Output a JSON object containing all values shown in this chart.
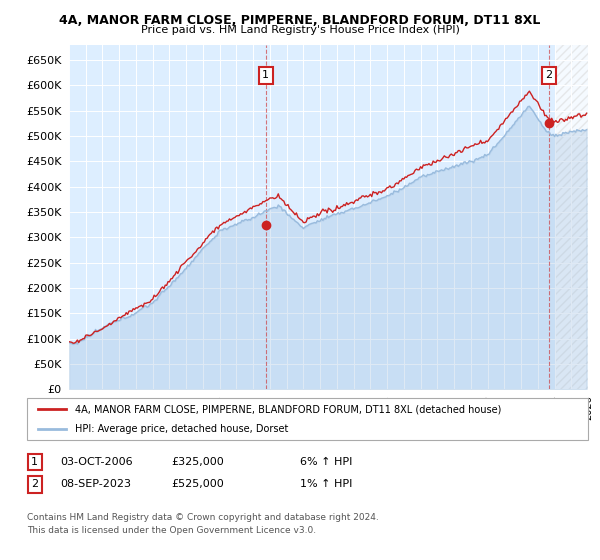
{
  "title": "4A, MANOR FARM CLOSE, PIMPERNE, BLANDFORD FORUM, DT11 8XL",
  "subtitle": "Price paid vs. HM Land Registry's House Price Index (HPI)",
  "legend_line1": "4A, MANOR FARM CLOSE, PIMPERNE, BLANDFORD FORUM, DT11 8XL (detached house)",
  "legend_line2": "HPI: Average price, detached house, Dorset",
  "sale1_date": "03-OCT-2006",
  "sale1_price": 325000,
  "sale1_hpi": "6% ↑ HPI",
  "sale2_date": "08-SEP-2023",
  "sale2_price": 525000,
  "sale2_hpi": "1% ↑ HPI",
  "footnote1": "Contains HM Land Registry data © Crown copyright and database right 2024.",
  "footnote2": "This data is licensed under the Open Government Licence v3.0.",
  "ylim": [
    0,
    680000
  ],
  "yticks": [
    0,
    50000,
    100000,
    150000,
    200000,
    250000,
    300000,
    350000,
    400000,
    450000,
    500000,
    550000,
    600000,
    650000
  ],
  "price_line_color": "#cc2222",
  "hpi_line_color": "#99bbdd",
  "hpi_fill_color": "#ddeeff",
  "background_color": "#ffffff",
  "grid_color": "#ddeeff",
  "sale1_year": 2006.75,
  "sale2_year": 2023.67,
  "xlim_left": 1995,
  "xlim_right": 2026.0
}
